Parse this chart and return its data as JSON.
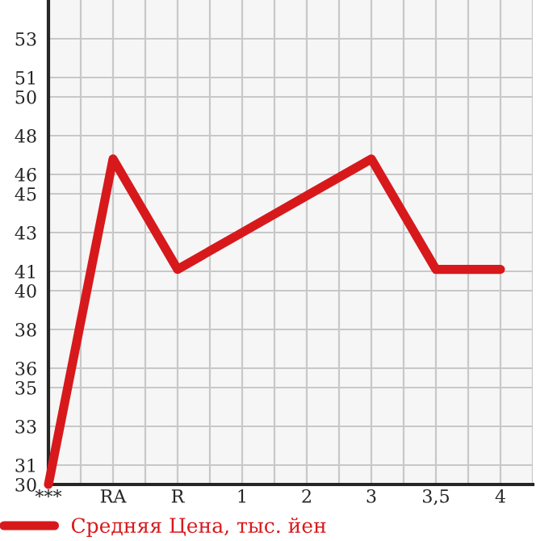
{
  "chart_data": {
    "type": "line",
    "categories": [
      "***",
      "RA",
      "R",
      "1",
      "2",
      "3",
      "3,5",
      "4"
    ],
    "series": [
      {
        "name": "Средняя Цена, тыс. йен",
        "color": "#d7191c",
        "values": [
          30,
          46.8,
          41.1,
          43.0,
          44.9,
          46.8,
          41.1,
          41.1
        ]
      }
    ],
    "ylim": [
      30,
      55
    ],
    "yticks": [
      30,
      31,
      33,
      35,
      36,
      38,
      40,
      41,
      43,
      45,
      46,
      48,
      50,
      51,
      53
    ],
    "grid": true,
    "legend": "bottom",
    "marker": "none",
    "line_style": "solid"
  }
}
